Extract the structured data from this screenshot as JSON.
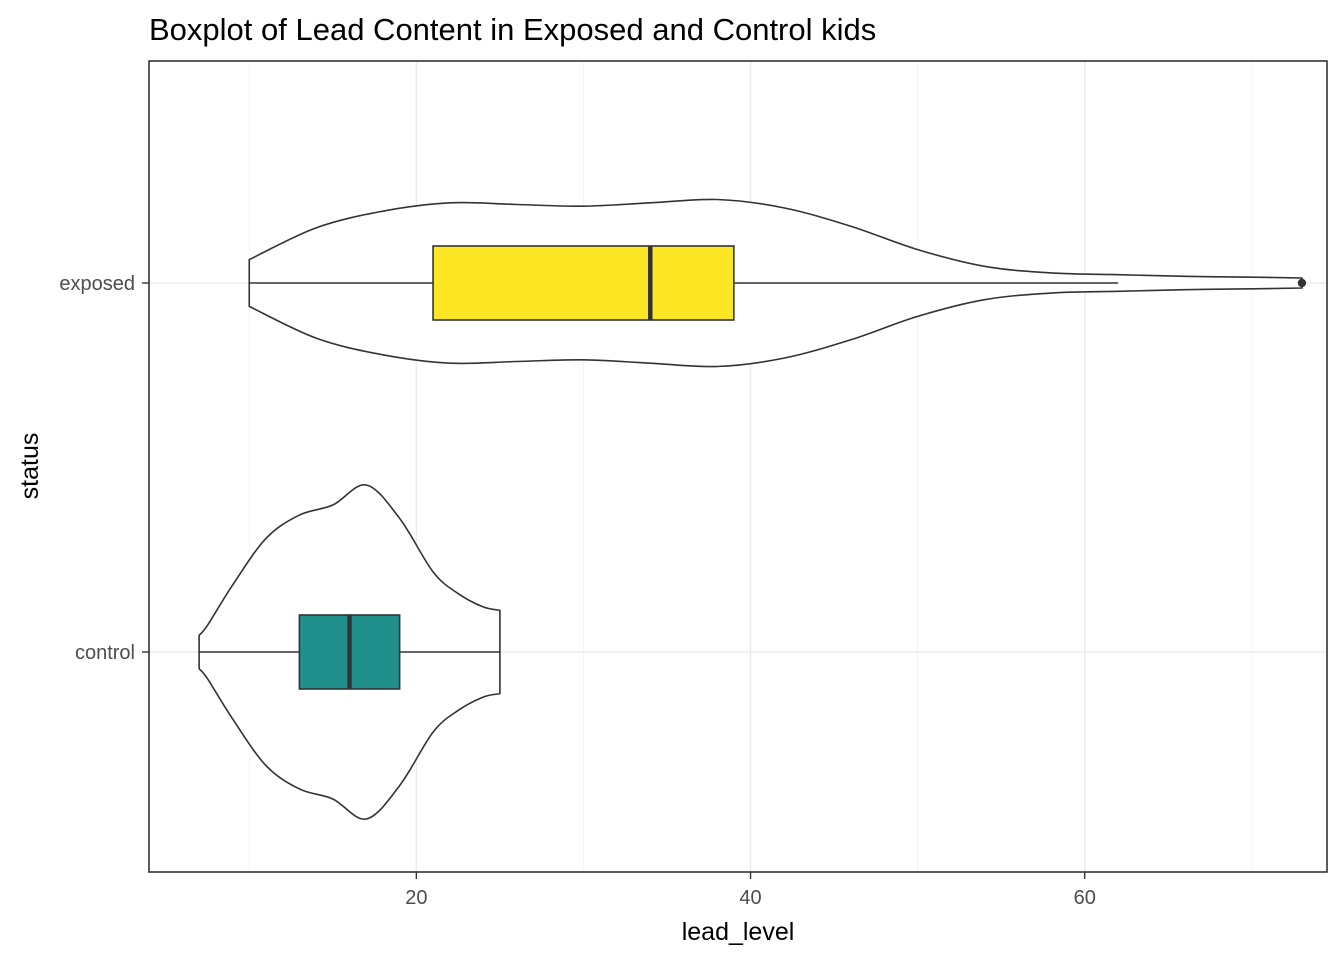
{
  "chart_data": {
    "type": "boxplot",
    "title": "Boxplot of Lead Content in Exposed and Control kids",
    "xlabel": "lead_level",
    "ylabel": "status",
    "xlim": [
      4,
      74.5
    ],
    "x_ticks": [
      20,
      40,
      60
    ],
    "x_tick_labels": [
      "20",
      "40",
      "60"
    ],
    "grid": true,
    "categories": [
      "control",
      "exposed"
    ],
    "series": [
      {
        "category": "control",
        "fill": "#21908C",
        "box": {
          "min": 7,
          "q1": 13,
          "median": 16,
          "q3": 19,
          "max": 25
        },
        "violin": {
          "y": [
            7,
            7.5,
            9,
            11,
            13,
            15,
            17,
            19,
            21,
            22.5,
            24,
            25
          ],
          "w": [
            0.1,
            0.16,
            0.4,
            0.68,
            0.82,
            0.88,
            1.0,
            0.8,
            0.48,
            0.35,
            0.27,
            0.25
          ]
        },
        "outliers": []
      },
      {
        "category": "exposed",
        "fill": "#FDE725",
        "box": {
          "min": 10,
          "q1": 21,
          "median": 34,
          "q3": 39,
          "max": 62
        },
        "violin": {
          "y": [
            10,
            14,
            18,
            22,
            26,
            30,
            34,
            38,
            42,
            46,
            50,
            54,
            58,
            62,
            66,
            70,
            73
          ],
          "w": [
            0.14,
            0.33,
            0.43,
            0.48,
            0.47,
            0.46,
            0.48,
            0.5,
            0.45,
            0.34,
            0.2,
            0.1,
            0.06,
            0.05,
            0.04,
            0.035,
            0.03
          ]
        },
        "outliers": [
          73
        ]
      }
    ]
  }
}
